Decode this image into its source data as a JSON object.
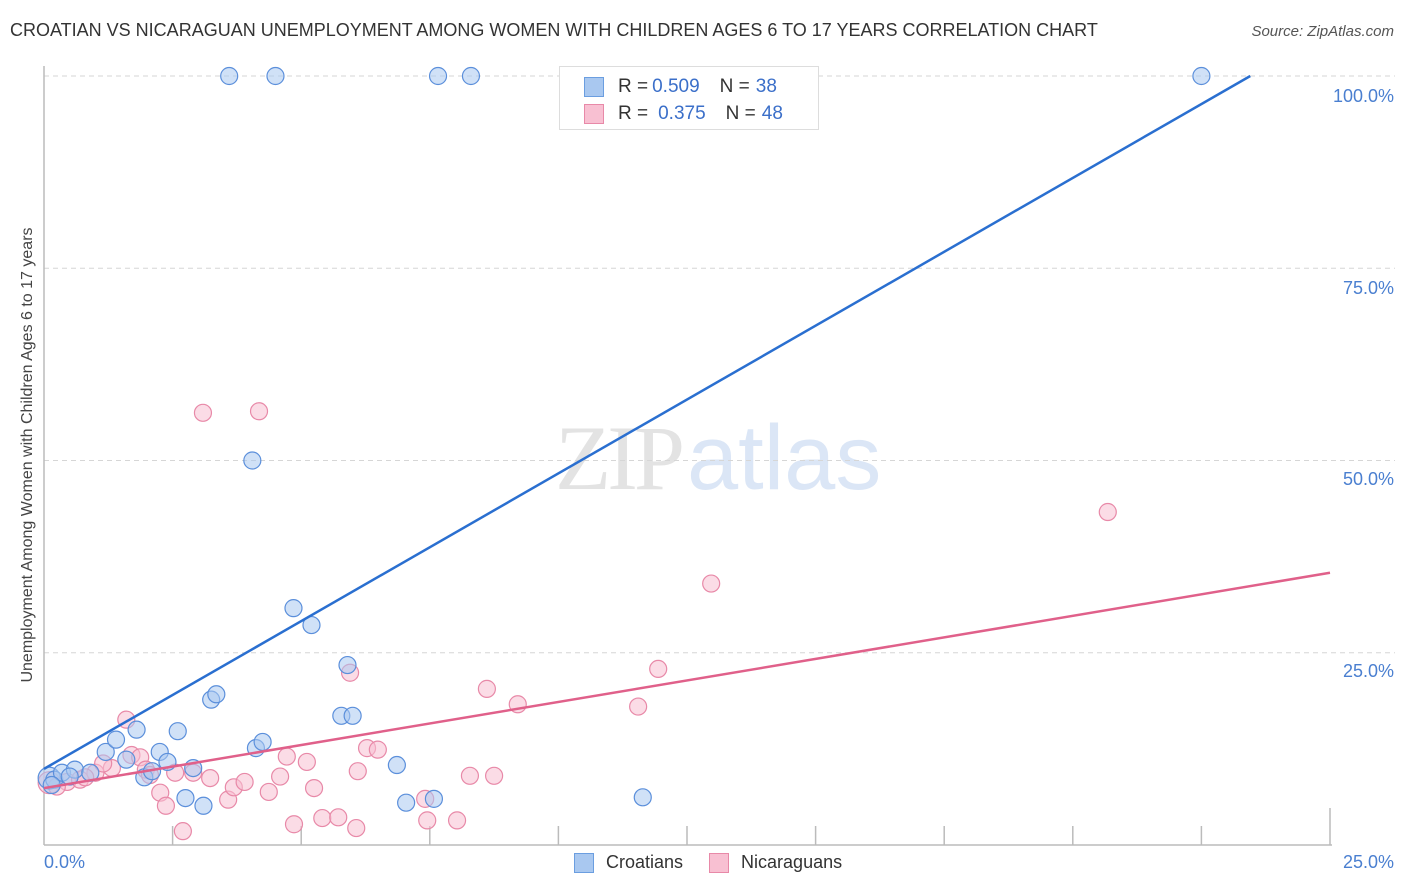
{
  "header": {
    "title": "CROATIAN VS NICARAGUAN UNEMPLOYMENT AMONG WOMEN WITH CHILDREN AGES 6 TO 17 YEARS CORRELATION CHART",
    "source": "Source: ZipAtlas.com"
  },
  "watermark": {
    "zip": "ZIP",
    "atlas": "atlas"
  },
  "axes": {
    "ylabel": "Unemployment Among Women with Children Ages 6 to 17 years",
    "y_ticks": [
      "100.0%",
      "75.0%",
      "50.0%",
      "25.0%"
    ],
    "x_min_label": "0.0%",
    "x_max_label": "25.0%"
  },
  "legend": {
    "rows": [
      {
        "r_label": "R = ",
        "r_value": "0.509",
        "n_label": "N = ",
        "n_value": "38",
        "color": "#a9c8f0",
        "border": "#6b9ee0"
      },
      {
        "r_label": "R = ",
        "r_value": "0.375",
        "n_label": "N = ",
        "n_value": "48",
        "color": "#f8c0d2",
        "border": "#e889a8"
      }
    ],
    "series_names": [
      "Croatians",
      "Nicaraguans"
    ]
  },
  "colors": {
    "croatians_fill": "#a9c8f0",
    "croatians_stroke": "#5b8fdb",
    "croatians_line": "#2a6fd0",
    "nicaraguans_fill": "#f8c0d2",
    "nicaraguans_stroke": "#e889a8",
    "nicaraguans_line": "#e0608a",
    "tick_label": "#4a7fd0"
  },
  "chart_data": {
    "type": "scatter",
    "title": "CROATIAN VS NICARAGUAN UNEMPLOYMENT AMONG WOMEN WITH CHILDREN AGES 6 TO 17 YEARS CORRELATION CHART",
    "xlabel": "",
    "ylabel": "Unemployment Among Women with Children Ages 6 to 17 years",
    "xlim": [
      0,
      25
    ],
    "ylim": [
      0,
      100
    ],
    "x_unit": "%",
    "y_unit": "%",
    "grid": true,
    "legend_position": "top-center",
    "series": [
      {
        "name": "Croatians",
        "R": 0.509,
        "N": 38,
        "trendline": {
          "x": [
            0,
            23.45
          ],
          "y": [
            9.9,
            100
          ]
        },
        "points": [
          [
            0.1,
            8.7
          ],
          [
            0.2,
            8.5
          ],
          [
            0.35,
            9.4
          ],
          [
            0.6,
            9.8
          ],
          [
            0.9,
            9.4
          ],
          [
            1.2,
            12.1
          ],
          [
            1.4,
            13.7
          ],
          [
            1.6,
            11.1
          ],
          [
            1.8,
            15.0
          ],
          [
            1.95,
            8.8
          ],
          [
            2.1,
            9.6
          ],
          [
            2.25,
            12.1
          ],
          [
            2.4,
            10.8
          ],
          [
            2.6,
            14.8
          ],
          [
            2.75,
            6.1
          ],
          [
            2.9,
            10.0
          ],
          [
            3.1,
            5.1
          ],
          [
            3.25,
            18.9
          ],
          [
            3.35,
            19.6
          ],
          [
            3.6,
            100
          ],
          [
            4.05,
            50.0
          ],
          [
            4.12,
            12.6
          ],
          [
            4.25,
            13.4
          ],
          [
            4.5,
            100
          ],
          [
            4.85,
            30.8
          ],
          [
            5.2,
            28.6
          ],
          [
            5.9,
            23.4
          ],
          [
            5.78,
            16.8
          ],
          [
            6.0,
            16.8
          ],
          [
            6.86,
            10.4
          ],
          [
            7.04,
            5.5
          ],
          [
            7.58,
            6.0
          ],
          [
            7.66,
            100
          ],
          [
            8.3,
            100
          ],
          [
            11.64,
            6.2
          ],
          [
            22.5,
            100
          ],
          [
            0.15,
            7.8
          ],
          [
            0.5,
            8.9
          ]
        ]
      },
      {
        "name": "Nicaraguans",
        "R": 0.375,
        "N": 48,
        "trendline": {
          "x": [
            0,
            25
          ],
          "y": [
            7.4,
            35.4
          ]
        },
        "points": [
          [
            0.1,
            8.1
          ],
          [
            0.45,
            8.2
          ],
          [
            0.7,
            8.5
          ],
          [
            1.0,
            9.4
          ],
          [
            1.32,
            10.0
          ],
          [
            1.6,
            16.3
          ],
          [
            1.7,
            11.7
          ],
          [
            1.87,
            11.4
          ],
          [
            1.98,
            9.8
          ],
          [
            2.06,
            9.1
          ],
          [
            2.26,
            6.8
          ],
          [
            2.37,
            5.1
          ],
          [
            2.55,
            9.4
          ],
          [
            2.7,
            1.8
          ],
          [
            2.9,
            9.4
          ],
          [
            3.09,
            56.2
          ],
          [
            3.23,
            8.7
          ],
          [
            3.58,
            5.9
          ],
          [
            3.69,
            7.5
          ],
          [
            3.9,
            8.2
          ],
          [
            4.18,
            56.4
          ],
          [
            4.37,
            6.9
          ],
          [
            4.59,
            8.9
          ],
          [
            4.72,
            11.5
          ],
          [
            4.86,
            2.7
          ],
          [
            5.11,
            10.8
          ],
          [
            5.25,
            7.4
          ],
          [
            5.41,
            3.5
          ],
          [
            5.72,
            3.6
          ],
          [
            5.95,
            22.4
          ],
          [
            6.07,
            2.2
          ],
          [
            6.1,
            9.6
          ],
          [
            6.28,
            12.6
          ],
          [
            6.49,
            12.4
          ],
          [
            7.41,
            6.0
          ],
          [
            7.45,
            3.2
          ],
          [
            8.03,
            3.2
          ],
          [
            8.28,
            9.0
          ],
          [
            8.61,
            20.3
          ],
          [
            8.75,
            9.0
          ],
          [
            9.21,
            18.3
          ],
          [
            11.55,
            18.0
          ],
          [
            11.94,
            22.9
          ],
          [
            12.97,
            34.0
          ],
          [
            20.68,
            43.3
          ],
          [
            0.25,
            7.6
          ],
          [
            0.8,
            8.8
          ],
          [
            1.15,
            10.6
          ]
        ]
      }
    ]
  }
}
